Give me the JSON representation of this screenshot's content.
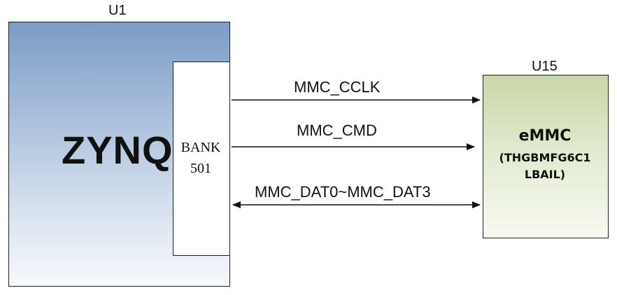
{
  "u1": {
    "refdes": "U1",
    "name": "ZYNQ",
    "bank_line1": "BANK",
    "bank_line2": "501"
  },
  "u15": {
    "refdes": "U15",
    "name": "eMMC",
    "part_line1": "(THGBMFG6C1",
    "part_line2": "LBAIL)"
  },
  "signals": {
    "clk": "MMC_CCLK",
    "cmd": "MMC_CMD",
    "dat": "MMC_DAT0~MMC_DAT3"
  }
}
